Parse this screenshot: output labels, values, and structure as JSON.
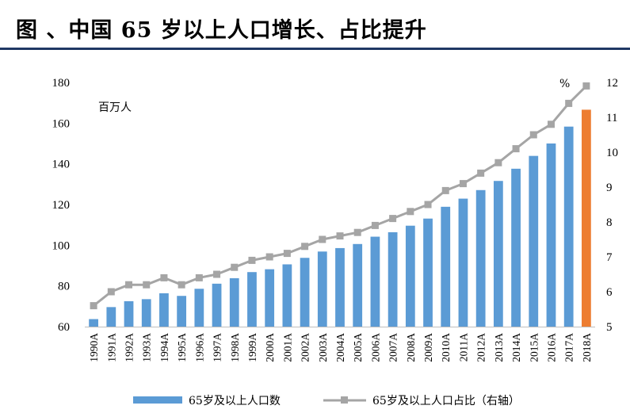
{
  "title": "图 、中国 65 岁以上人口增长、占比提升",
  "chart_data": {
    "type": "bar",
    "categories": [
      "1990A",
      "1991A",
      "1992A",
      "1993A",
      "1994A",
      "1995A",
      "1996A",
      "1997A",
      "1998A",
      "1999A",
      "2000A",
      "2001A",
      "2002A",
      "2003A",
      "2004A",
      "2005A",
      "2006A",
      "2007A",
      "2008A",
      "2009A",
      "2010A",
      "2011A",
      "2012A",
      "2013A",
      "2014A",
      "2015A",
      "2016A",
      "2017A",
      "2018A"
    ],
    "series": [
      {
        "name": "65岁及以上人口数",
        "type": "bar",
        "axis": "left",
        "color": "#5b9bd5",
        "highlight_color": "#ed7d31",
        "highlight_index": 28,
        "values": [
          63.7,
          69.6,
          72.5,
          73.5,
          76.4,
          75.1,
          78.6,
          81.1,
          83.8,
          86.8,
          88.2,
          90.6,
          93.8,
          96.9,
          98.6,
          100.6,
          104.2,
          106.4,
          109.6,
          113.1,
          118.9,
          122.9,
          127.1,
          131.6,
          137.6,
          143.9,
          150.0,
          158.3,
          166.6
        ]
      },
      {
        "name": "65岁及以上人口占比（右轴）",
        "type": "line",
        "axis": "right",
        "color": "#a5a5a5",
        "values": [
          5.6,
          6.0,
          6.2,
          6.2,
          6.4,
          6.2,
          6.4,
          6.5,
          6.7,
          6.9,
          7.0,
          7.1,
          7.3,
          7.5,
          7.6,
          7.7,
          7.9,
          8.1,
          8.3,
          8.5,
          8.9,
          9.1,
          9.4,
          9.7,
          10.1,
          10.5,
          10.8,
          11.4,
          11.9
        ]
      }
    ],
    "ylim_left": [
      60,
      180
    ],
    "yticks_left": [
      60,
      80,
      100,
      120,
      140,
      160,
      180
    ],
    "ylim_right": [
      5,
      12
    ],
    "yticks_right": [
      5,
      6,
      7,
      8,
      9,
      10,
      11,
      12
    ],
    "left_unit": "百万人",
    "right_unit": "%",
    "legend_position": "bottom",
    "grid": false
  }
}
